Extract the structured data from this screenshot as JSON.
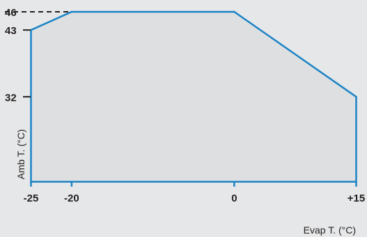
{
  "chart_data": {
    "type": "area",
    "xlabel": "Evap T. (°C)",
    "ylabel": "Amb T. (°C)",
    "x_ticks": [
      {
        "value": -25,
        "label": "-25"
      },
      {
        "value": -20,
        "label": "-20"
      },
      {
        "value": 0,
        "label": "0"
      },
      {
        "value": 15,
        "label": "+15"
      }
    ],
    "y_ticks": [
      {
        "value": 32,
        "label": "32"
      },
      {
        "value": 43,
        "label": "43"
      },
      {
        "value": 46,
        "label": "46"
      }
    ],
    "dashed_ref": {
      "y": 46,
      "from_x": -25,
      "to_x": -20
    },
    "series": [
      {
        "points": [
          {
            "x": -25,
            "y": 43
          },
          {
            "x": -20,
            "y": 46
          },
          {
            "x": 0,
            "y": 46
          },
          {
            "x": 15,
            "y": 32
          }
        ]
      }
    ],
    "xlim": [
      -25,
      15
    ],
    "ylim": [
      18,
      46
    ],
    "grid": false,
    "colors": {
      "line": "#1a83c6",
      "fill": "#dedfe1",
      "axis": "#231f20",
      "background": "#e6e7e8"
    }
  }
}
